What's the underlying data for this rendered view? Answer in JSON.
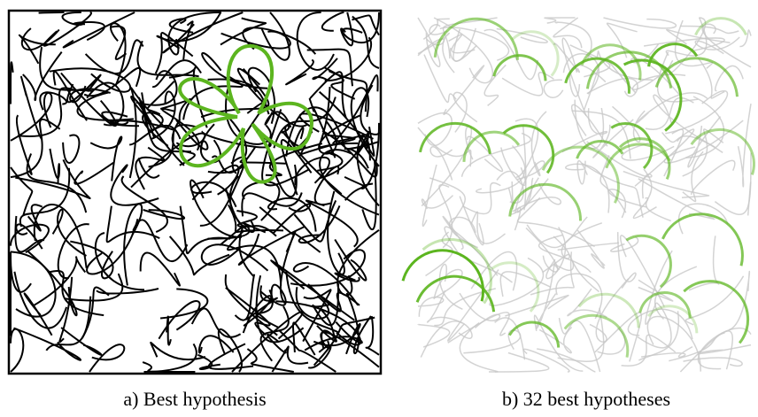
{
  "figure": {
    "panels": [
      {
        "caption": "a) Best hypothesis"
      },
      {
        "caption": "b) 32 best hypotheses"
      }
    ]
  }
}
